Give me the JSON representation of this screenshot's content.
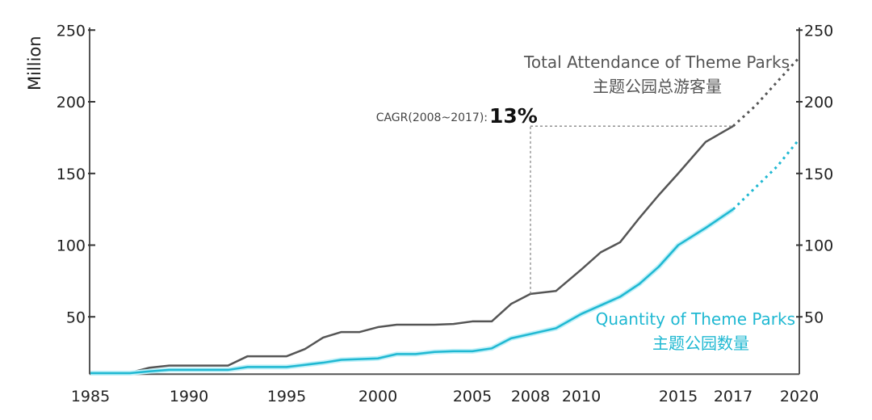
{
  "chart_data": {
    "type": "line",
    "ylabel": "Million",
    "ylim": [
      10,
      255
    ],
    "xlim": [
      1985,
      2020
    ],
    "yticks": [
      50,
      100,
      150,
      200,
      250
    ],
    "right_yticks": [
      50,
      100,
      150,
      200,
      250
    ],
    "xticks": [
      {
        "label": "1985",
        "year": 1985,
        "muted": false
      },
      {
        "label": "1990",
        "year": 1990,
        "muted": false
      },
      {
        "label": "1995",
        "year": 1995,
        "muted": false
      },
      {
        "label": "2000",
        "year": 2000,
        "muted": false
      },
      {
        "label": "2005",
        "year": 2005,
        "muted": false
      },
      {
        "label": "2008",
        "year": 2008,
        "muted": true
      },
      {
        "label": "2010",
        "year": 2010,
        "muted": false
      },
      {
        "label": "2015",
        "year": 2015,
        "muted": false
      },
      {
        "label": "2017",
        "year": 2017,
        "muted": true
      },
      {
        "label": "2020",
        "year": 2020,
        "muted": false
      }
    ],
    "grid": false,
    "series": [
      {
        "name": "Total Attendance of Theme Parks",
        "name_zh": "主题公园总游客量",
        "color": "#555555",
        "x": [
          1985,
          1986,
          1987,
          1988,
          1989,
          1990,
          1991,
          1992,
          1993,
          1994,
          1995,
          1996,
          1997,
          1998,
          1999,
          2000,
          2001,
          2002,
          2003,
          2004,
          2005,
          2006,
          2007,
          2008,
          2009,
          2010,
          2011,
          2012,
          2013,
          2014,
          2015,
          2016,
          2017
        ],
        "y": [
          10.7,
          10.7,
          11,
          14.5,
          16,
          16,
          16,
          16,
          22.5,
          22.5,
          22.5,
          27.5,
          35.5,
          39.4,
          39.4,
          42.8,
          44.5,
          44.5,
          44.5,
          45,
          46.8,
          46.8,
          59,
          66,
          68,
          83,
          95,
          102,
          119,
          135,
          150,
          172,
          183
        ],
        "projected_x": [
          2017,
          2018,
          2019,
          2020
        ],
        "projected_y": [
          183,
          197,
          214,
          231
        ]
      },
      {
        "name": "Quantity of Theme Parks",
        "name_zh": "主题公园数量",
        "color": "#1fb8d2",
        "x": [
          1985,
          1986,
          1987,
          1988,
          1989,
          1990,
          1991,
          1992,
          1993,
          1994,
          1995,
          1996,
          1997,
          1998,
          1999,
          2000,
          2001,
          2002,
          2003,
          2004,
          2005,
          2006,
          2007,
          2008,
          2009,
          2010,
          2011,
          2012,
          2013,
          2014,
          2015,
          2016,
          2017
        ],
        "y": [
          10.7,
          10.7,
          10.7,
          12,
          13,
          13,
          13,
          13,
          15,
          15,
          15,
          16.5,
          18,
          20,
          20.5,
          21,
          24,
          24,
          25.5,
          26,
          26,
          28,
          35,
          38,
          42,
          52,
          58,
          64,
          73,
          85,
          100,
          112,
          125
        ],
        "projected_x": [
          2017,
          2018,
          2019,
          2020
        ],
        "projected_y": [
          125,
          140,
          155,
          174
        ]
      }
    ],
    "annotations": {
      "cagr_label": "CAGR(2008~2017):",
      "cagr_value": "13%",
      "cagr_from": 2008,
      "cagr_to": 2017
    }
  }
}
